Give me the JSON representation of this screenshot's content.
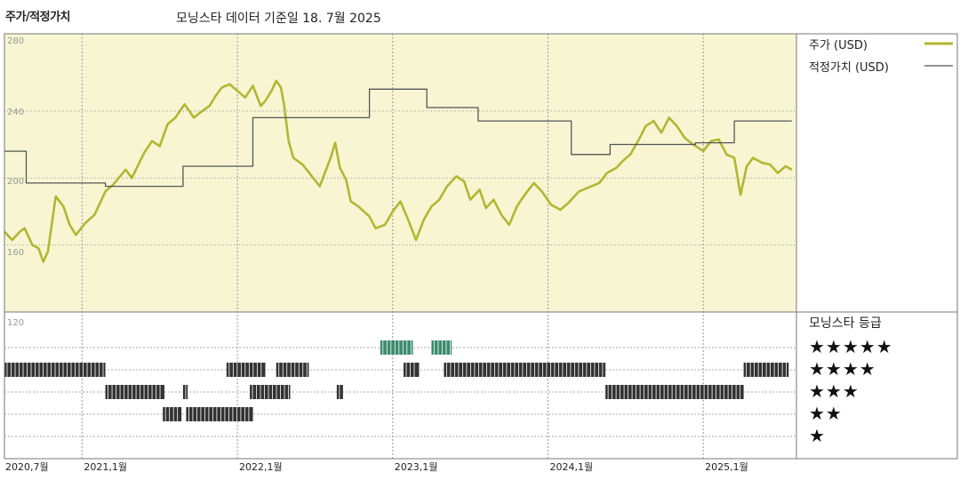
{
  "chart_data": {
    "type": "line",
    "title": "주가/적정가치",
    "subtitle": "모닝스타 데이터 기준일 18. 7월 2025",
    "y_ticks": [
      "280",
      "240",
      "200",
      "160",
      "120"
    ],
    "ylim": [
      120,
      285
    ],
    "x_ticks": [
      "2020,7월",
      "2021,1월",
      "2022,1월",
      "2023,1월",
      "2024,1월",
      "2025,1월"
    ],
    "x_tick_times": [
      2020.5,
      2021.0,
      2022.0,
      2023.0,
      2024.0,
      2025.0
    ],
    "xlim": [
      2020.5,
      2025.6
    ],
    "legend": {
      "price_label": "주가 (USD)",
      "fair_label": "적정가치 (USD)"
    },
    "colors": {
      "price": "#b3b632",
      "fair": "#555555",
      "panel": "#f8f5d3",
      "green_star": "#3c8a6e",
      "dark_star": "#333333"
    },
    "series": [
      {
        "name": "주가 (USD)",
        "key": "price",
        "points": [
          [
            2020.5,
            168
          ],
          [
            2020.55,
            163
          ],
          [
            2020.6,
            168
          ],
          [
            2020.63,
            170
          ],
          [
            2020.68,
            160
          ],
          [
            2020.72,
            158
          ],
          [
            2020.75,
            150
          ],
          [
            2020.78,
            156
          ],
          [
            2020.83,
            189
          ],
          [
            2020.88,
            183
          ],
          [
            2020.92,
            172
          ],
          [
            2020.96,
            166
          ],
          [
            2021.02,
            173
          ],
          [
            2021.08,
            178
          ],
          [
            2021.15,
            192
          ],
          [
            2021.2,
            196
          ],
          [
            2021.28,
            205
          ],
          [
            2021.32,
            200
          ],
          [
            2021.4,
            215
          ],
          [
            2021.45,
            222
          ],
          [
            2021.5,
            219
          ],
          [
            2021.55,
            232
          ],
          [
            2021.6,
            236
          ],
          [
            2021.66,
            244
          ],
          [
            2021.72,
            236
          ],
          [
            2021.76,
            239
          ],
          [
            2021.82,
            243
          ],
          [
            2021.86,
            249
          ],
          [
            2021.9,
            254
          ],
          [
            2021.95,
            256
          ],
          [
            2022.0,
            252
          ],
          [
            2022.05,
            248
          ],
          [
            2022.1,
            255
          ],
          [
            2022.15,
            243
          ],
          [
            2022.18,
            246
          ],
          [
            2022.22,
            252
          ],
          [
            2022.25,
            258
          ],
          [
            2022.28,
            254
          ],
          [
            2022.3,
            244
          ],
          [
            2022.33,
            222
          ],
          [
            2022.36,
            212
          ],
          [
            2022.42,
            208
          ],
          [
            2022.48,
            201
          ],
          [
            2022.53,
            195
          ],
          [
            2022.6,
            212
          ],
          [
            2022.63,
            221
          ],
          [
            2022.66,
            206
          ],
          [
            2022.7,
            199
          ],
          [
            2022.73,
            186
          ],
          [
            2022.78,
            183
          ],
          [
            2022.85,
            177
          ],
          [
            2022.89,
            170
          ],
          [
            2022.95,
            172
          ],
          [
            2023.0,
            180
          ],
          [
            2023.05,
            186
          ],
          [
            2023.1,
            175
          ],
          [
            2023.15,
            163
          ],
          [
            2023.2,
            175
          ],
          [
            2023.25,
            183
          ],
          [
            2023.3,
            187
          ],
          [
            2023.35,
            195
          ],
          [
            2023.41,
            201
          ],
          [
            2023.46,
            198
          ],
          [
            2023.5,
            187
          ],
          [
            2023.56,
            193
          ],
          [
            2023.6,
            182
          ],
          [
            2023.65,
            187
          ],
          [
            2023.7,
            178
          ],
          [
            2023.75,
            172
          ],
          [
            2023.8,
            183
          ],
          [
            2023.85,
            190
          ],
          [
            2023.91,
            197
          ],
          [
            2023.96,
            192
          ],
          [
            2024.02,
            184
          ],
          [
            2024.08,
            181
          ],
          [
            2024.13,
            185
          ],
          [
            2024.2,
            192
          ],
          [
            2024.28,
            195
          ],
          [
            2024.33,
            197
          ],
          [
            2024.38,
            203
          ],
          [
            2024.44,
            206
          ],
          [
            2024.48,
            210
          ],
          [
            2024.53,
            214
          ],
          [
            2024.58,
            222
          ],
          [
            2024.63,
            231
          ],
          [
            2024.68,
            234
          ],
          [
            2024.73,
            227
          ],
          [
            2024.78,
            236
          ],
          [
            2024.83,
            231
          ],
          [
            2024.88,
            224
          ],
          [
            2024.92,
            221
          ],
          [
            2025.0,
            216
          ],
          [
            2025.05,
            222
          ],
          [
            2025.1,
            223
          ],
          [
            2025.15,
            214
          ],
          [
            2025.2,
            212
          ],
          [
            2025.24,
            190
          ],
          [
            2025.28,
            207
          ],
          [
            2025.32,
            212
          ],
          [
            2025.38,
            209
          ],
          [
            2025.43,
            208
          ],
          [
            2025.48,
            203
          ],
          [
            2025.53,
            207
          ],
          [
            2025.57,
            205
          ]
        ]
      },
      {
        "name": "적정가치 (USD)",
        "key": "fair",
        "points": [
          [
            2020.5,
            216
          ],
          [
            2020.64,
            216
          ],
          [
            2020.64,
            197
          ],
          [
            2021.15,
            197
          ],
          [
            2021.15,
            195
          ],
          [
            2021.33,
            195
          ],
          [
            2021.33,
            195
          ],
          [
            2021.65,
            195
          ],
          [
            2021.65,
            207
          ],
          [
            2022.1,
            207
          ],
          [
            2022.1,
            236
          ],
          [
            2022.85,
            236
          ],
          [
            2022.85,
            253
          ],
          [
            2023.22,
            253
          ],
          [
            2023.22,
            242
          ],
          [
            2023.55,
            242
          ],
          [
            2023.55,
            234
          ],
          [
            2023.9,
            234
          ],
          [
            2023.9,
            234
          ],
          [
            2024.15,
            234
          ],
          [
            2024.15,
            214
          ],
          [
            2024.4,
            214
          ],
          [
            2024.4,
            220
          ],
          [
            2024.95,
            220
          ],
          [
            2024.95,
            221
          ],
          [
            2025.2,
            221
          ],
          [
            2025.2,
            234
          ],
          [
            2025.57,
            234
          ]
        ]
      }
    ],
    "star_legend_label": "모닝스타 등급",
    "star_rows": [
      "★★★★★",
      "★★★★",
      "★★★",
      "★★",
      "★"
    ],
    "star_segments": [
      [
        5,
        2022.92,
        2023.13,
        "green"
      ],
      [
        5,
        2023.25,
        2023.38,
        "green"
      ],
      [
        4,
        2020.5,
        2021.15,
        "dark"
      ],
      [
        4,
        2021.93,
        2022.18,
        "dark"
      ],
      [
        4,
        2022.25,
        2022.46,
        "dark"
      ],
      [
        4,
        2023.07,
        2023.17,
        "dark"
      ],
      [
        4,
        2023.33,
        2024.37,
        "dark"
      ],
      [
        4,
        2025.26,
        2025.55,
        "dark"
      ],
      [
        3,
        2021.15,
        2021.53,
        "dark"
      ],
      [
        3,
        2021.65,
        2021.68,
        "dark"
      ],
      [
        3,
        2022.08,
        2022.34,
        "dark"
      ],
      [
        3,
        2022.64,
        2022.68,
        "dark"
      ],
      [
        3,
        2024.37,
        2025.26,
        "dark"
      ],
      [
        2,
        2021.52,
        2021.64,
        "dark"
      ],
      [
        2,
        2021.67,
        2022.1,
        "dark"
      ]
    ]
  }
}
